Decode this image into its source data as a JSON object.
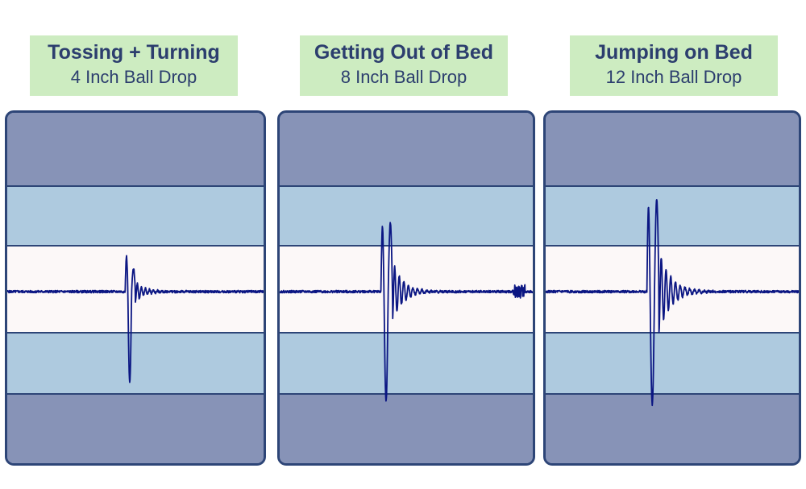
{
  "chart_data": [
    {
      "type": "line",
      "title": "Tossing + Turning",
      "subtitle": "4 Inch Ball Drop",
      "signal": {
        "impact_position": 0.46,
        "peak_up": 0.38,
        "peak_down": 0.98,
        "second_peak_up": 0.25,
        "decay": 0.035,
        "ringing_period": 0.021,
        "tail_noise": false
      }
    },
    {
      "type": "line",
      "title": "Getting Out of Bed",
      "subtitle": "8 Inch Ball Drop",
      "signal": {
        "impact_position": 0.4,
        "peak_up": 0.7,
        "peak_down": 1.18,
        "second_peak_up": 0.74,
        "decay": 0.04,
        "ringing_period": 0.024,
        "tail_noise": true
      }
    },
    {
      "type": "line",
      "title": "Jumping on Bed",
      "subtitle": "12 Inch Ball Drop",
      "signal": {
        "impact_position": 0.4,
        "peak_up": 0.91,
        "peak_down": 1.22,
        "second_peak_up": 1.0,
        "decay": 0.045,
        "ringing_period": 0.025,
        "tail_noise": false
      }
    }
  ],
  "colors": {
    "trace": "#0b1683",
    "label_bg": "#cdecc1",
    "label_text": "#2c3e6e",
    "outer_band": "#8793b7",
    "mid_band": "#aecadf",
    "center_band": "#fcf8f8",
    "border": "#2d4577"
  }
}
